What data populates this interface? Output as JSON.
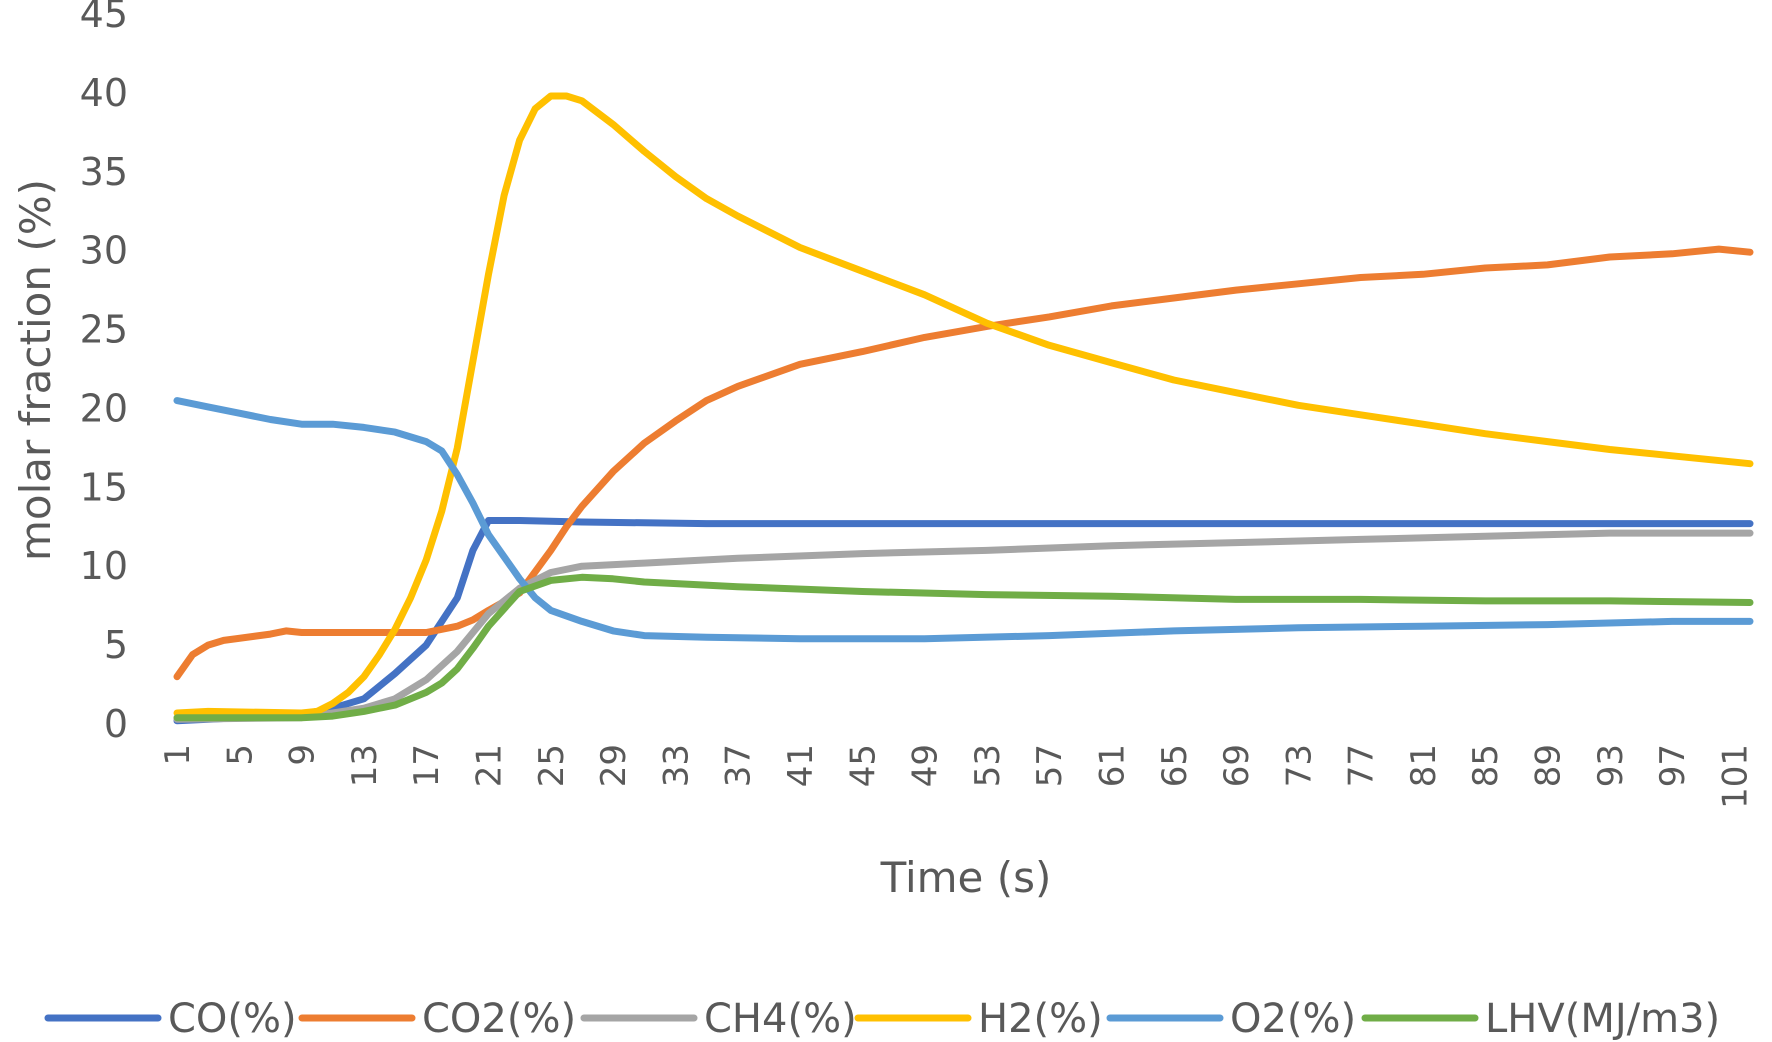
{
  "chart_data": {
    "type": "line",
    "xlabel": "Time (s)",
    "ylabel": "molar fraction  (%)",
    "xlim": [
      1,
      102
    ],
    "ylim": [
      0,
      45
    ],
    "yticks": [
      0,
      5,
      10,
      15,
      20,
      25,
      30,
      35,
      40,
      45
    ],
    "xticks": [
      1,
      5,
      9,
      13,
      17,
      21,
      25,
      29,
      33,
      37,
      41,
      45,
      49,
      53,
      57,
      61,
      65,
      69,
      73,
      77,
      81,
      85,
      89,
      93,
      97,
      101
    ],
    "grid": false,
    "legend_position": "bottom",
    "series": [
      {
        "name": "CO(%)",
        "color": "#4472C4",
        "points": [
          [
            1,
            0.2
          ],
          [
            5,
            0.4
          ],
          [
            9,
            0.6
          ],
          [
            11,
            1.0
          ],
          [
            13,
            1.6
          ],
          [
            15,
            3.2
          ],
          [
            17,
            5.0
          ],
          [
            19,
            8.0
          ],
          [
            20,
            11.0
          ],
          [
            21,
            12.9
          ],
          [
            23,
            12.9
          ],
          [
            27,
            12.8
          ],
          [
            35,
            12.7
          ],
          [
            45,
            12.7
          ],
          [
            60,
            12.7
          ],
          [
            75,
            12.7
          ],
          [
            90,
            12.7
          ],
          [
            102,
            12.7
          ]
        ]
      },
      {
        "name": "CO2(%)",
        "color": "#ED7D31",
        "points": [
          [
            1,
            3.0
          ],
          [
            2,
            4.4
          ],
          [
            3,
            5.0
          ],
          [
            4,
            5.3
          ],
          [
            7,
            5.7
          ],
          [
            8,
            5.9
          ],
          [
            9,
            5.8
          ],
          [
            17,
            5.8
          ],
          [
            19,
            6.2
          ],
          [
            20,
            6.6
          ],
          [
            21,
            7.2
          ],
          [
            23,
            8.3
          ],
          [
            25,
            11.0
          ],
          [
            26,
            12.5
          ],
          [
            27,
            13.8
          ],
          [
            29,
            16.0
          ],
          [
            31,
            17.8
          ],
          [
            33,
            19.2
          ],
          [
            35,
            20.5
          ],
          [
            37,
            21.4
          ],
          [
            41,
            22.8
          ],
          [
            45,
            23.6
          ],
          [
            49,
            24.5
          ],
          [
            53,
            25.2
          ],
          [
            57,
            25.8
          ],
          [
            61,
            26.5
          ],
          [
            65,
            27.0
          ],
          [
            69,
            27.5
          ],
          [
            73,
            27.9
          ],
          [
            77,
            28.3
          ],
          [
            81,
            28.5
          ],
          [
            85,
            28.9
          ],
          [
            89,
            29.1
          ],
          [
            93,
            29.6
          ],
          [
            97,
            29.8
          ],
          [
            100,
            30.1
          ],
          [
            102,
            29.9
          ]
        ]
      },
      {
        "name": "CH4(%)",
        "color": "#A5A5A5",
        "points": [
          [
            1,
            0.3
          ],
          [
            9,
            0.4
          ],
          [
            13,
            1.0
          ],
          [
            15,
            1.6
          ],
          [
            17,
            2.8
          ],
          [
            19,
            4.6
          ],
          [
            21,
            7.0
          ],
          [
            23,
            8.6
          ],
          [
            25,
            9.6
          ],
          [
            27,
            10.0
          ],
          [
            31,
            10.2
          ],
          [
            37,
            10.5
          ],
          [
            45,
            10.8
          ],
          [
            53,
            11.0
          ],
          [
            61,
            11.3
          ],
          [
            69,
            11.5
          ],
          [
            77,
            11.7
          ],
          [
            85,
            11.9
          ],
          [
            93,
            12.1
          ],
          [
            102,
            12.1
          ]
        ]
      },
      {
        "name": "H2(%)",
        "color": "#FFC000",
        "points": [
          [
            1,
            0.7
          ],
          [
            3,
            0.8
          ],
          [
            9,
            0.7
          ],
          [
            10,
            0.8
          ],
          [
            11,
            1.3
          ],
          [
            12,
            2.0
          ],
          [
            13,
            3.0
          ],
          [
            14,
            4.4
          ],
          [
            15,
            6.0
          ],
          [
            16,
            8.0
          ],
          [
            17,
            10.4
          ],
          [
            18,
            13.5
          ],
          [
            19,
            17.5
          ],
          [
            20,
            23.0
          ],
          [
            21,
            28.5
          ],
          [
            22,
            33.5
          ],
          [
            23,
            37.0
          ],
          [
            24,
            39.0
          ],
          [
            25,
            39.8
          ],
          [
            26,
            39.8
          ],
          [
            27,
            39.5
          ],
          [
            29,
            38.0
          ],
          [
            31,
            36.3
          ],
          [
            33,
            34.7
          ],
          [
            35,
            33.3
          ],
          [
            37,
            32.2
          ],
          [
            41,
            30.2
          ],
          [
            45,
            28.7
          ],
          [
            49,
            27.2
          ],
          [
            53,
            25.4
          ],
          [
            57,
            24.0
          ],
          [
            61,
            22.9
          ],
          [
            65,
            21.8
          ],
          [
            69,
            21.0
          ],
          [
            73,
            20.2
          ],
          [
            77,
            19.6
          ],
          [
            81,
            19.0
          ],
          [
            85,
            18.4
          ],
          [
            89,
            17.9
          ],
          [
            93,
            17.4
          ],
          [
            97,
            17.0
          ],
          [
            102,
            16.5
          ]
        ]
      },
      {
        "name": "O2(%)",
        "color": "#5B9BD5",
        "points": [
          [
            1,
            20.5
          ],
          [
            3,
            20.1
          ],
          [
            5,
            19.7
          ],
          [
            7,
            19.3
          ],
          [
            9,
            19.0
          ],
          [
            11,
            19.0
          ],
          [
            13,
            18.8
          ],
          [
            15,
            18.5
          ],
          [
            17,
            17.9
          ],
          [
            18,
            17.3
          ],
          [
            19,
            15.8
          ],
          [
            20,
            14.0
          ],
          [
            21,
            12.0
          ],
          [
            22,
            10.6
          ],
          [
            23,
            9.2
          ],
          [
            24,
            8.0
          ],
          [
            25,
            7.2
          ],
          [
            27,
            6.5
          ],
          [
            29,
            5.9
          ],
          [
            31,
            5.6
          ],
          [
            35,
            5.5
          ],
          [
            41,
            5.4
          ],
          [
            49,
            5.4
          ],
          [
            57,
            5.6
          ],
          [
            65,
            5.9
          ],
          [
            73,
            6.1
          ],
          [
            81,
            6.2
          ],
          [
            89,
            6.3
          ],
          [
            97,
            6.5
          ],
          [
            102,
            6.5
          ]
        ]
      },
      {
        "name": "LHV(MJ/m3)",
        "color": "#70AD47",
        "points": [
          [
            1,
            0.4
          ],
          [
            5,
            0.4
          ],
          [
            9,
            0.4
          ],
          [
            11,
            0.5
          ],
          [
            13,
            0.8
          ],
          [
            15,
            1.2
          ],
          [
            17,
            2.0
          ],
          [
            18,
            2.6
          ],
          [
            19,
            3.5
          ],
          [
            20,
            4.8
          ],
          [
            21,
            6.2
          ],
          [
            23,
            8.4
          ],
          [
            25,
            9.1
          ],
          [
            27,
            9.3
          ],
          [
            29,
            9.2
          ],
          [
            31,
            9.0
          ],
          [
            37,
            8.7
          ],
          [
            45,
            8.4
          ],
          [
            53,
            8.2
          ],
          [
            61,
            8.1
          ],
          [
            69,
            7.9
          ],
          [
            77,
            7.9
          ],
          [
            85,
            7.8
          ],
          [
            93,
            7.8
          ],
          [
            102,
            7.7
          ]
        ]
      }
    ]
  }
}
